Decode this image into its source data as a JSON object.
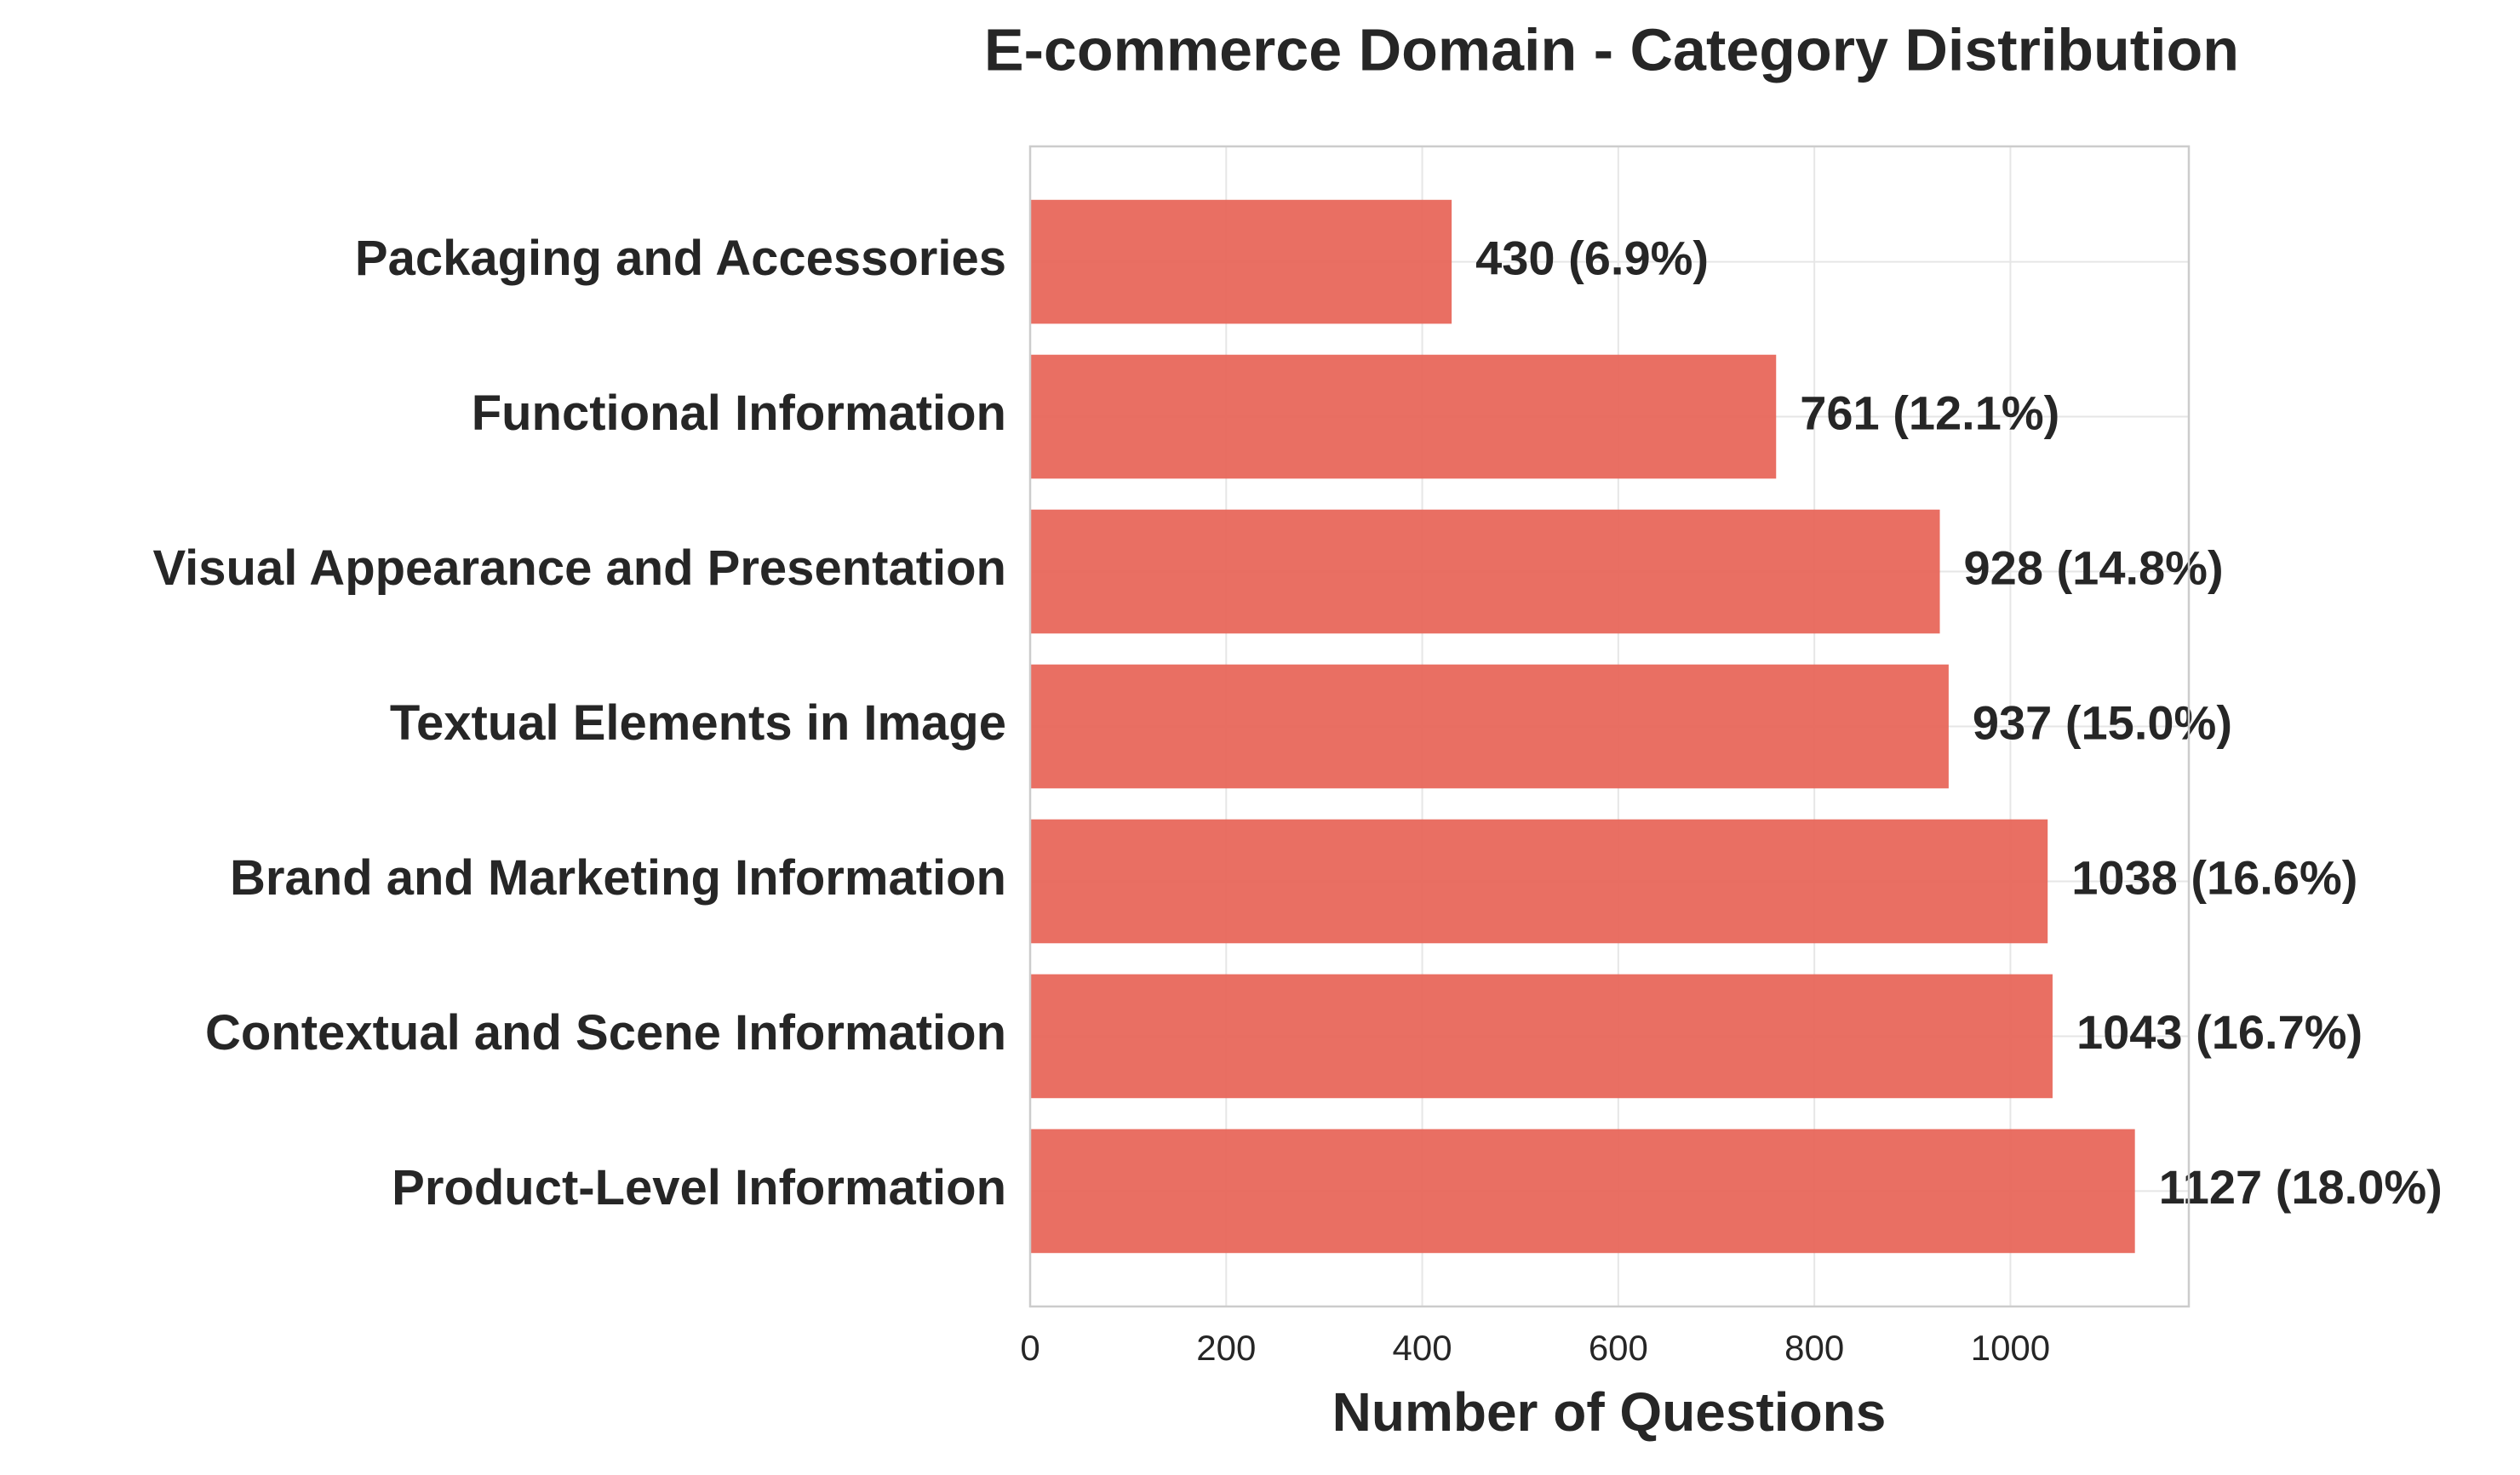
{
  "chart_data": {
    "type": "barh",
    "title": "E-commerce Domain - Category Distribution",
    "x_label": "Number of Questions",
    "categories": [
      "Packaging and Accessories",
      "Functional Information",
      "Visual Appearance and Presentation",
      "Textual Elements in Image",
      "Brand and Marketing Information",
      "Contextual and Scene Information",
      "Product-Level Information"
    ],
    "values": [
      430,
      761,
      928,
      937,
      1038,
      1043,
      1127
    ],
    "value_labels": [
      "430 (6.9%)",
      "761 (12.1%)",
      "928 (14.8%)",
      "937 (15.0%)",
      "1038 (16.6%)",
      "1043 (16.7%)",
      "1127 (18.0%)"
    ],
    "color": "#e8675b",
    "xlim": [
      0,
      1182
    ],
    "xticks": [
      0,
      200,
      400,
      600,
      800,
      1000
    ],
    "grid": true
  }
}
